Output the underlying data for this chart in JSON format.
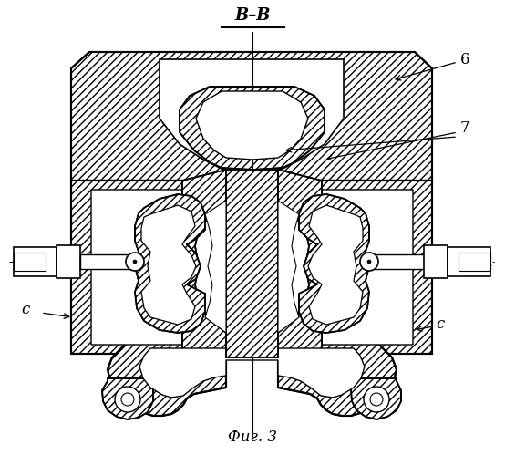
{
  "title": "B–B",
  "caption": "Фиг. 3",
  "label_6": "6",
  "label_7": "7",
  "label_c_left": "c",
  "label_c_right": "c",
  "bg_color": "#ffffff",
  "line_color": "#000000",
  "figsize": [
    5.54,
    4.99
  ],
  "dpi": 100
}
